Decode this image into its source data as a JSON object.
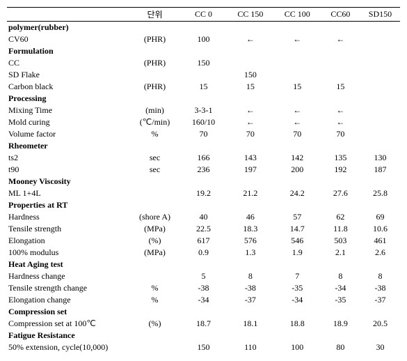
{
  "headers": [
    "",
    "단위",
    "CC 0",
    "CC 150",
    "CC 100",
    "CC60",
    "SD150"
  ],
  "rows": [
    {
      "section": true,
      "cells": [
        "polymer(rubber)",
        "",
        "",
        "",
        "",
        "",
        ""
      ]
    },
    {
      "section": false,
      "cells": [
        "CV60",
        "(PHR)",
        "100",
        "←",
        "←",
        "←",
        ""
      ]
    },
    {
      "section": true,
      "cells": [
        "Formulation",
        "",
        "",
        "",
        "",
        "",
        ""
      ]
    },
    {
      "section": false,
      "cells": [
        "CC",
        "(PHR)",
        "150",
        "",
        "",
        "",
        ""
      ]
    },
    {
      "section": false,
      "cells": [
        "SD Flake",
        "",
        "",
        "150",
        "",
        "",
        ""
      ]
    },
    {
      "section": false,
      "cells": [
        "Carbon black",
        "(PHR)",
        "15",
        "15",
        "15",
        "15",
        ""
      ]
    },
    {
      "section": true,
      "cells": [
        "Processing",
        "",
        "",
        "",
        "",
        "",
        ""
      ]
    },
    {
      "section": false,
      "cells": [
        "Mixing Time",
        "(min)",
        "3-3-1",
        "←",
        "←",
        "←",
        ""
      ]
    },
    {
      "section": false,
      "cells": [
        "Mold curing",
        "(℃/min)",
        "160/10",
        "←",
        "←",
        "←",
        ""
      ]
    },
    {
      "section": false,
      "cells": [
        "Volume factor",
        "%",
        "70",
        "70",
        "70",
        "70",
        ""
      ]
    },
    {
      "section": true,
      "cells": [
        "Rheometer",
        "",
        "",
        "",
        "",
        "",
        ""
      ]
    },
    {
      "section": false,
      "cells": [
        "ts2",
        "sec",
        "166",
        "143",
        "142",
        "135",
        "130"
      ]
    },
    {
      "section": false,
      "cells": [
        "t90",
        "sec",
        "236",
        "197",
        "200",
        "192",
        "187"
      ]
    },
    {
      "section": true,
      "cells": [
        "Mooney Viscosity",
        "",
        "",
        "",
        "",
        "",
        ""
      ]
    },
    {
      "section": false,
      "cells": [
        "ML 1+4L",
        "",
        "19.2",
        "21.2",
        "24.2",
        "27.6",
        "25.8"
      ]
    },
    {
      "section": true,
      "cells": [
        "Properties at RT",
        "",
        "",
        "",
        "",
        "",
        ""
      ]
    },
    {
      "section": false,
      "cells": [
        "Hardness",
        "(shore A)",
        "40",
        "46",
        "57",
        "62",
        "69"
      ]
    },
    {
      "section": false,
      "cells": [
        "Tensile strength",
        "(MPa)",
        "22.5",
        "18.3",
        "14.7",
        "11.8",
        "10.6"
      ]
    },
    {
      "section": false,
      "cells": [
        "Elongation",
        "(%)",
        "617",
        "576",
        "546",
        "503",
        "461"
      ]
    },
    {
      "section": false,
      "cells": [
        "100% modulus",
        "(MPa)",
        "0.9",
        "1.3",
        "1.9",
        "2.1",
        "2.6"
      ]
    },
    {
      "section": true,
      "cells": [
        "Heat Aging test",
        "",
        "",
        "",
        "",
        "",
        ""
      ]
    },
    {
      "section": false,
      "cells": [
        "Hardness change",
        "",
        "5",
        "8",
        "7",
        "8",
        "8"
      ]
    },
    {
      "section": false,
      "cells": [
        "Tensile strength change",
        "%",
        "-38",
        "-38",
        "-35",
        "-34",
        "-38"
      ]
    },
    {
      "section": false,
      "cells": [
        "Elongation change",
        "%",
        "-34",
        "-37",
        "-34",
        "-35",
        "-37"
      ]
    },
    {
      "section": true,
      "cells": [
        "Compression set",
        "",
        "",
        "",
        "",
        "",
        ""
      ]
    },
    {
      "section": false,
      "cells": [
        "Compression set at 100℃",
        "(%)",
        "18.7",
        "18.1",
        "18.8",
        "18.9",
        "20.5"
      ]
    },
    {
      "section": true,
      "cells": [
        "Fatigue Resistance",
        "",
        "",
        "",
        "",
        "",
        ""
      ]
    },
    {
      "section": false,
      "cells": [
        "50% extension, cycle(10,000)",
        "",
        "150",
        "110",
        "100",
        "80",
        "30"
      ]
    }
  ]
}
